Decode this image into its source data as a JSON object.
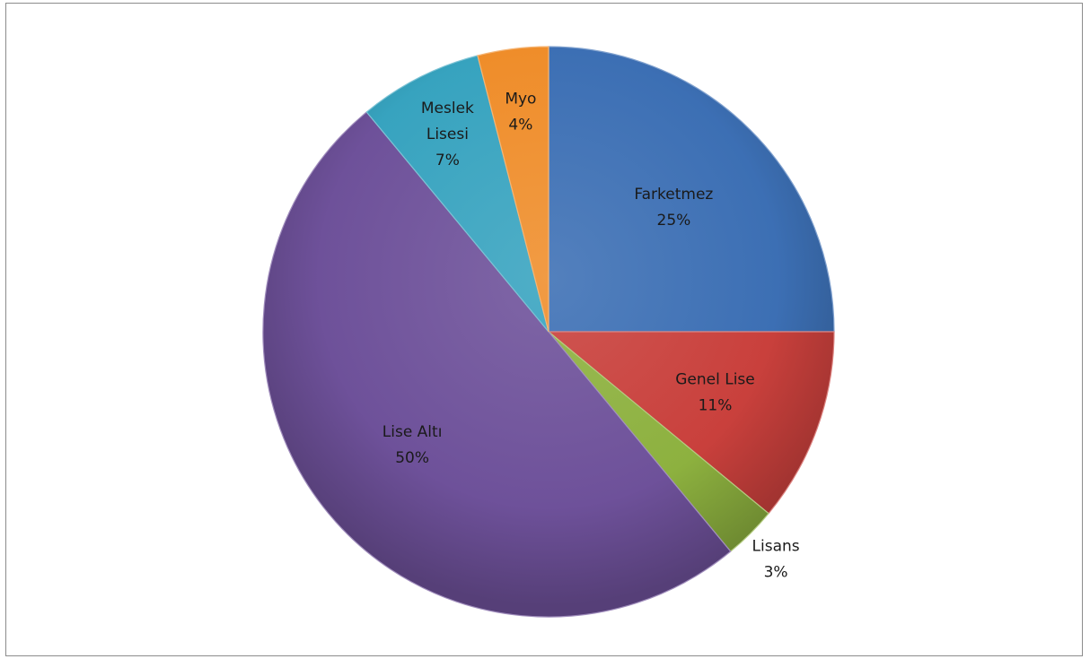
{
  "chart_data": {
    "type": "pie",
    "title": "",
    "slices": [
      {
        "name": "Farketmez",
        "value": 25,
        "label_lines": [
          "Farketmez"
        ],
        "pct_label": "25%",
        "color": "#3c6fb4",
        "label_pos": "inside"
      },
      {
        "name": "Genel Lise",
        "value": 11,
        "label_lines": [
          "Genel Lise"
        ],
        "pct_label": "11%",
        "color": "#c9403c",
        "label_pos": "inside"
      },
      {
        "name": "Lisans",
        "value": 3,
        "label_lines": [
          "Lisans"
        ],
        "pct_label": "3%",
        "color": "#8db13f",
        "label_pos": "outside"
      },
      {
        "name": "Lise Altı",
        "value": 50,
        "label_lines": [
          "Lise Altı"
        ],
        "pct_label": "50%",
        "color": "#6e519a",
        "label_pos": "inside"
      },
      {
        "name": "Meslek Lisesi",
        "value": 7,
        "label_lines": [
          "Meslek",
          "Lisesi"
        ],
        "pct_label": "7%",
        "color": "#37a3bf",
        "label_pos": "inside"
      },
      {
        "name": "Myo",
        "value": 4,
        "label_lines": [
          "Myo"
        ],
        "pct_label": "4%",
        "color": "#ef8d2a",
        "label_pos": "inside"
      }
    ],
    "start": "12 o'clock",
    "direction": "clockwise",
    "legend": "none"
  }
}
